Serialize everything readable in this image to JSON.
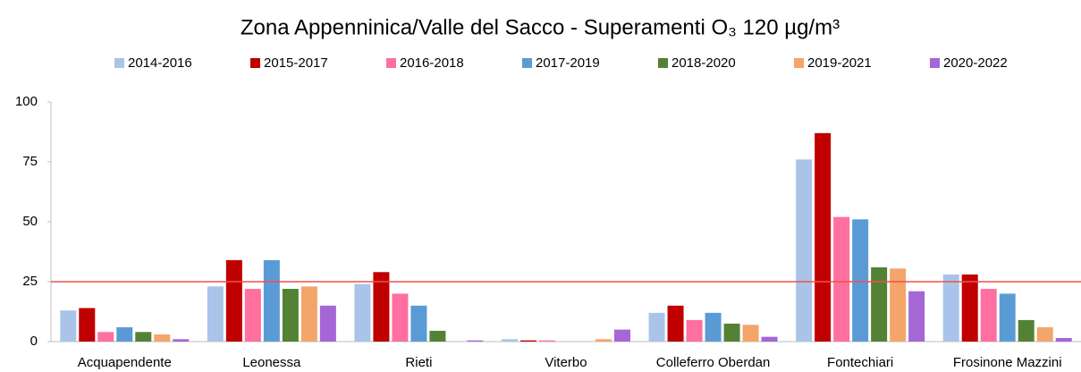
{
  "chart_data": {
    "type": "bar",
    "title": "Zona Appenninica/Valle del Sacco - Superamenti O₃ 120 µg/m³",
    "categories": [
      "Acquapendente",
      "Leonessa",
      "Rieti",
      "Viterbo",
      "Colleferro Oberdan",
      "Fontechiari",
      "Frosinone Mazzini"
    ],
    "series": [
      {
        "name": "2014-2016",
        "color": "#a9c4e8",
        "values": [
          13,
          23,
          24,
          1,
          12,
          76,
          28
        ]
      },
      {
        "name": "2015-2017",
        "color": "#c00000",
        "values": [
          14,
          34,
          29,
          0.5,
          15,
          87,
          28
        ]
      },
      {
        "name": "2016-2018",
        "color": "#ff6f9f",
        "values": [
          4,
          22,
          20,
          0.5,
          9,
          52,
          22
        ]
      },
      {
        "name": "2017-2019",
        "color": "#5b9bd5",
        "values": [
          6,
          34,
          15,
          null,
          12,
          51,
          20
        ]
      },
      {
        "name": "2018-2020",
        "color": "#548235",
        "values": [
          4,
          22,
          4.5,
          null,
          7.5,
          31,
          9
        ]
      },
      {
        "name": "2019-2021",
        "color": "#f4a56a",
        "values": [
          3,
          23,
          null,
          1,
          7,
          30.5,
          6
        ]
      },
      {
        "name": "2020-2022",
        "color": "#a566d6",
        "values": [
          1,
          15,
          0.5,
          5,
          2,
          21,
          1.5
        ]
      }
    ],
    "ylim": [
      0,
      100
    ],
    "yticks": [
      0,
      25,
      50,
      75,
      100
    ],
    "reference_line": {
      "value": 25,
      "color": "#f0504a"
    }
  }
}
